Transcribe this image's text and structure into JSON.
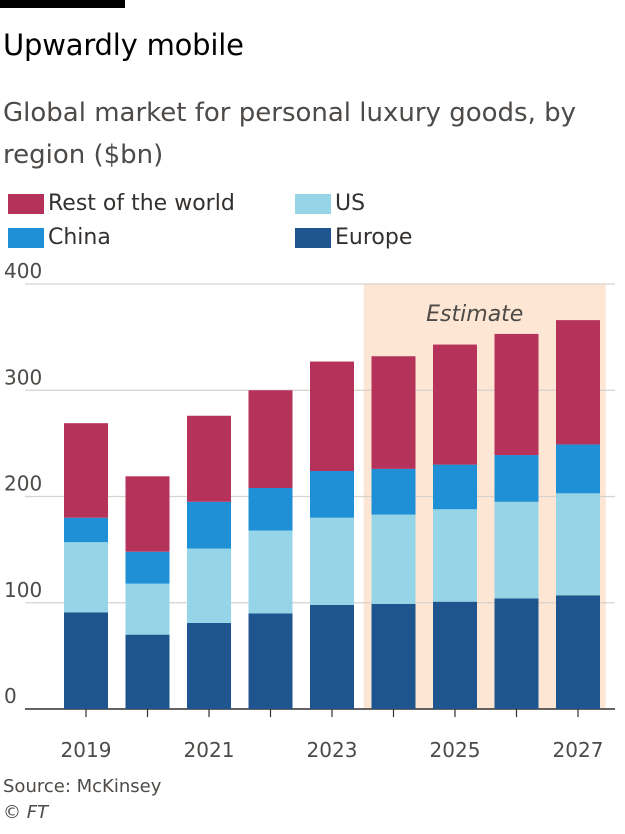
{
  "title": "Upwardly mobile",
  "subtitle": "Global market for personal luxury goods, by region ($bn)",
  "source": "Source: McKinsey",
  "copyright": "© FT",
  "colors": {
    "rest": "#b5325b",
    "us": "#96d4e8",
    "china": "#1f8fd6",
    "europe": "#1f558f",
    "estimate_band": "#fde6d3",
    "grid": "#d6d2ce",
    "axis": "#33302e"
  },
  "chart_data": {
    "type": "bar",
    "stacked": true,
    "title": "Upwardly mobile",
    "subtitle": "Global market for personal luxury goods, by region ($bn)",
    "categories": [
      "2019",
      "2020",
      "2021",
      "2022",
      "2023",
      "2024",
      "2025",
      "2026",
      "2027"
    ],
    "x_tick_labels": [
      "2019",
      "",
      "2021",
      "",
      "2023",
      "",
      "2025",
      "",
      "2027"
    ],
    "series": [
      {
        "name": "Europe",
        "values": [
          91,
          70,
          81,
          90,
          98,
          99,
          101,
          104,
          107
        ]
      },
      {
        "name": "US",
        "values": [
          66,
          48,
          70,
          78,
          82,
          84,
          87,
          91,
          96
        ]
      },
      {
        "name": "China",
        "values": [
          23,
          30,
          44,
          40,
          44,
          43,
          42,
          44,
          46
        ]
      },
      {
        "name": "Rest of the world",
        "values": [
          89,
          71,
          81,
          92,
          103,
          106,
          113,
          114,
          117
        ]
      }
    ],
    "legend": [
      "Rest of the world",
      "US",
      "China",
      "Europe"
    ],
    "ylim": [
      0,
      400
    ],
    "yticks": [
      0,
      100,
      200,
      300,
      400
    ],
    "annotation": {
      "text": "Estimate",
      "from_category": "2024",
      "to_category": "2027"
    },
    "xlabel": "",
    "ylabel": ""
  }
}
